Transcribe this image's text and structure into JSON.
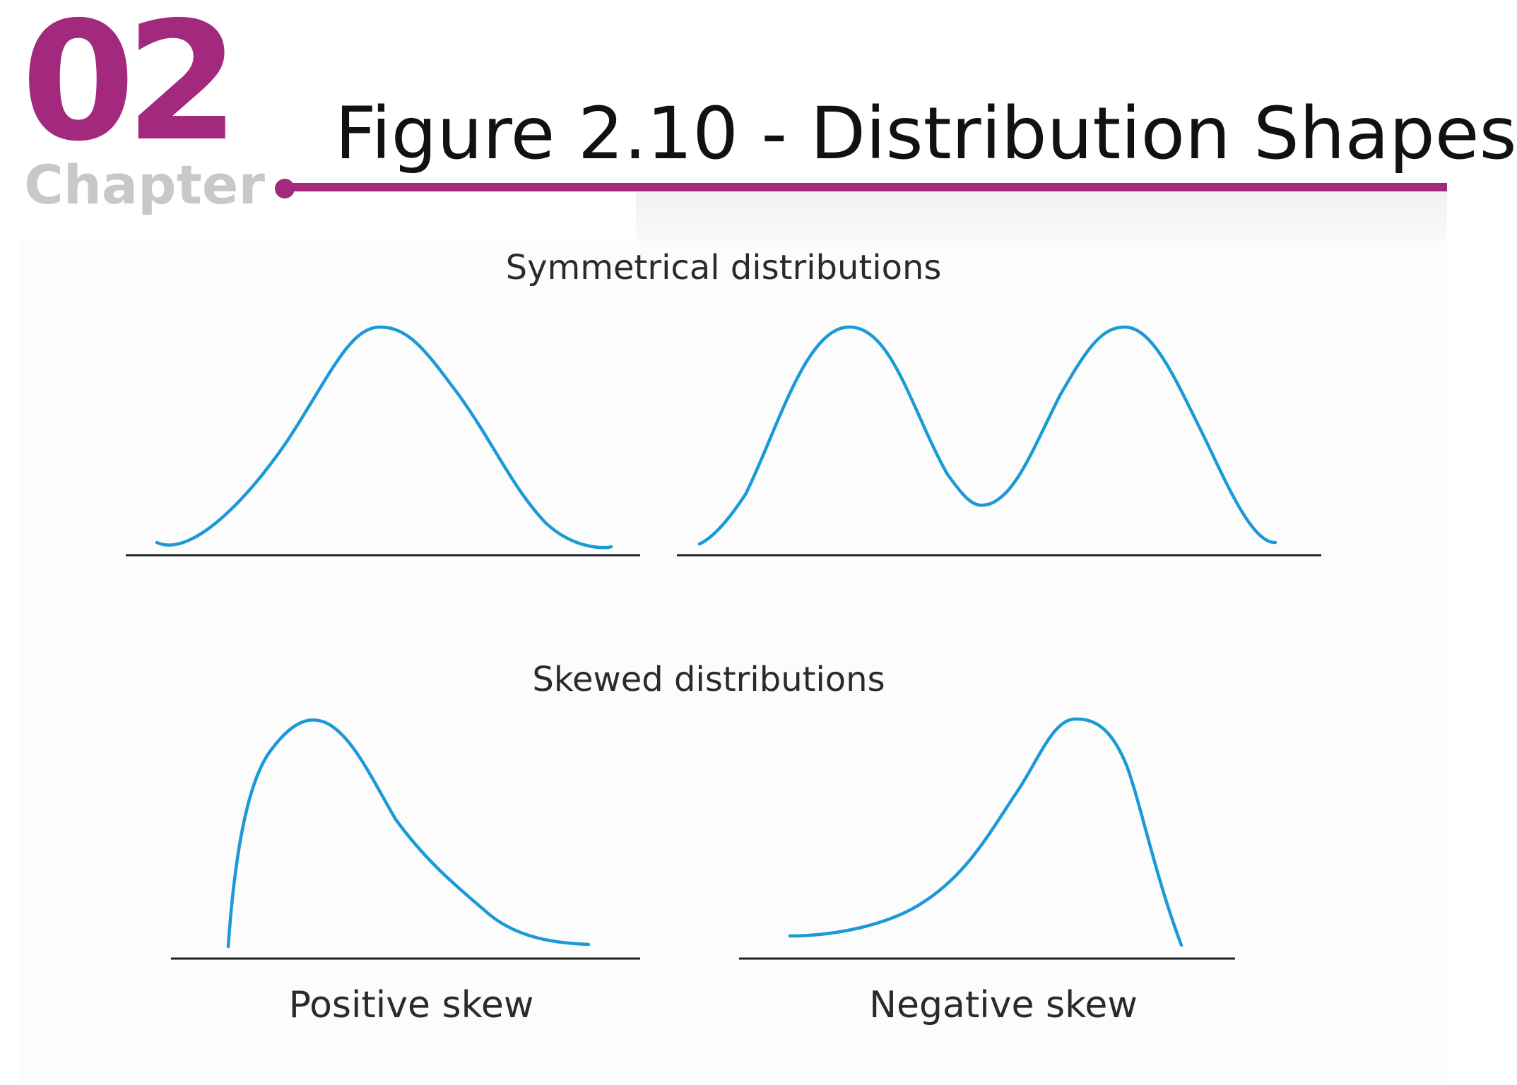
{
  "header": {
    "chapter_number": "02",
    "chapter_label": "Chapter",
    "title": "Figure 2.10 - Distribution Shapes"
  },
  "colors": {
    "accent": "#a3297f",
    "curve": "#1a9ad6",
    "baseline": "#222222"
  },
  "figure": {
    "symmetrical_heading": "Symmetrical distributions",
    "skewed_heading": "Skewed distributions",
    "panels": [
      {
        "id": "normal",
        "shape": "unimodal-symmetric",
        "caption": ""
      },
      {
        "id": "bimodal",
        "shape": "bimodal-symmetric",
        "caption": ""
      },
      {
        "id": "positive-skew",
        "shape": "right-skewed",
        "caption": "Positive skew"
      },
      {
        "id": "negative-skew",
        "shape": "left-skewed",
        "caption": "Negative skew"
      }
    ]
  }
}
